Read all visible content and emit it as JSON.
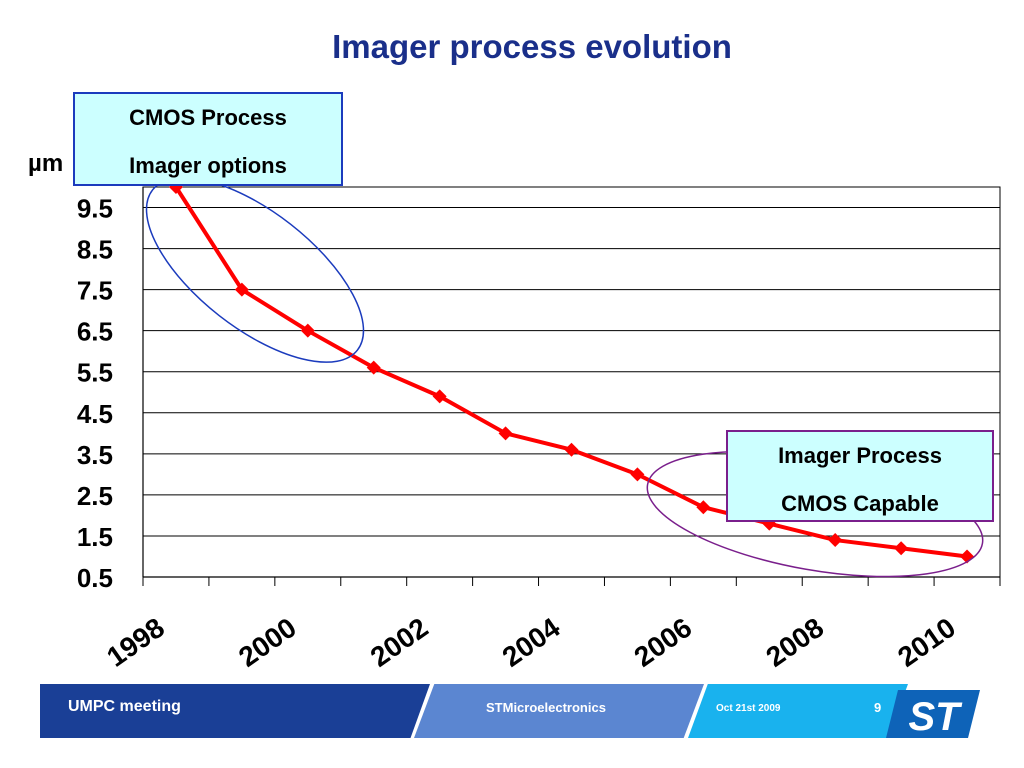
{
  "title": "Imager process evolution",
  "callouts": {
    "cmos": {
      "line1": "CMOS Process",
      "line2": "Imager options"
    },
    "imager": {
      "line1": "Imager Process",
      "line2": "CMOS Capable"
    }
  },
  "unit_label": "µm",
  "colors": {
    "title": "#1a2f8a",
    "series": "#ff0000",
    "callout_fill": "#ccffff",
    "cmos_ellipse": "#1b3bbd",
    "imager_ellipse": "#7a1f8c"
  },
  "chart_data": {
    "type": "line",
    "title": "Imager process evolution",
    "ylabel": "µm",
    "xlabel": "",
    "ylim": [
      0.5,
      10.0
    ],
    "xlim": [
      1998,
      2011
    ],
    "ytick_labels": [
      "9.5",
      "8.5",
      "7.5",
      "6.5",
      "5.5",
      "4.5",
      "3.5",
      "2.5",
      "1.5",
      "0.5"
    ],
    "xtick_labels": [
      "1998",
      "2000",
      "2002",
      "2004",
      "2006",
      "2008",
      "2010"
    ],
    "grid": true,
    "series": [
      {
        "x": [
          1998.5,
          1999.5,
          2000.5,
          2001.5,
          2002.5,
          2003.5,
          2004.5,
          2005.5,
          2006.5,
          2007.5,
          2008.5,
          2009.5,
          2010.5
        ],
        "values": [
          10.0,
          7.5,
          6.5,
          5.6,
          4.9,
          4.0,
          3.6,
          3.0,
          2.2,
          1.8,
          1.4,
          1.2,
          1.0
        ]
      }
    ]
  },
  "footer": {
    "meeting": "UMPC meeting",
    "company": "STMicroelectronics",
    "date": "Oct 21st  2009",
    "page": "9",
    "logo_text": "ST"
  }
}
